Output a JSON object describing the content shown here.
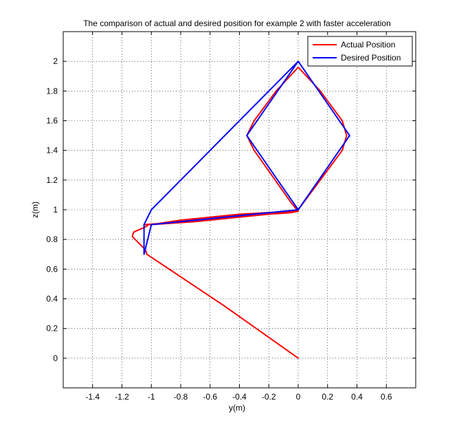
{
  "chart_data": {
    "type": "line",
    "title": "The comparison of actual and desired position for example 2 with faster acceleration",
    "xlabel": "y(m)",
    "ylabel": "z(m)",
    "xlim": [
      -1.6,
      0.8
    ],
    "ylim": [
      -0.2,
      2.2
    ],
    "xticks": [
      -1.4,
      -1.2,
      -1,
      -0.8,
      -0.6,
      -0.4,
      -0.2,
      0,
      0.2,
      0.4,
      0.6
    ],
    "xtick_labels": [
      "-1.4",
      "-1.2",
      "-1",
      "-0.8",
      "-0.6",
      "-0.4",
      "-0.2",
      "0",
      "0.2",
      "0.4",
      "0.6"
    ],
    "yticks": [
      0,
      0.2,
      0.4,
      0.6,
      0.8,
      1,
      1.2,
      1.4,
      1.6,
      1.8,
      2
    ],
    "ytick_labels": [
      "0",
      "0.2",
      "0.4",
      "0.6",
      "0.8",
      "1",
      "1.2",
      "1.4",
      "1.6",
      "1.8",
      "2"
    ],
    "grid": true,
    "legend_position": "top-right",
    "series": [
      {
        "name": "Actual Position",
        "color": "#ff0000",
        "x": [
          0,
          -0.5,
          -1.03,
          -1.04,
          -1.13,
          -1.12,
          -1.05,
          -1.03,
          -1.02,
          -1.0,
          -0.7,
          -0.4,
          -0.2,
          -0.05,
          0,
          -0.05,
          -0.3,
          -0.35,
          -0.3,
          -0.15,
          0,
          0.15,
          0.3,
          0.33,
          0.3,
          0.15,
          0,
          -0.05,
          -0.4,
          -0.8,
          -1.0,
          -1.05,
          -0.9,
          -0.5,
          -0.2,
          0,
          0
        ],
        "y": [
          0,
          0.35,
          0.7,
          0.73,
          0.82,
          0.85,
          0.88,
          0.89,
          0.9,
          0.9,
          0.92,
          0.95,
          0.97,
          0.98,
          0.99,
          1.05,
          1.4,
          1.5,
          1.6,
          1.8,
          1.96,
          1.8,
          1.6,
          1.5,
          1.4,
          1.2,
          1.0,
          0.99,
          0.97,
          0.93,
          0.9,
          0.9,
          0.91,
          0.95,
          0.98,
          0.99,
          1.0
        ]
      },
      {
        "name": "Desired Position",
        "color": "#0000ff",
        "x": [
          0,
          0.35,
          0,
          -0.35,
          0,
          -1.0,
          -1.0,
          -1.05,
          -1.05,
          -1.0,
          0
        ],
        "y": [
          2,
          1.5,
          1,
          1.5,
          2,
          1,
          1,
          0.9,
          0.7,
          0.9,
          1
        ]
      }
    ]
  }
}
